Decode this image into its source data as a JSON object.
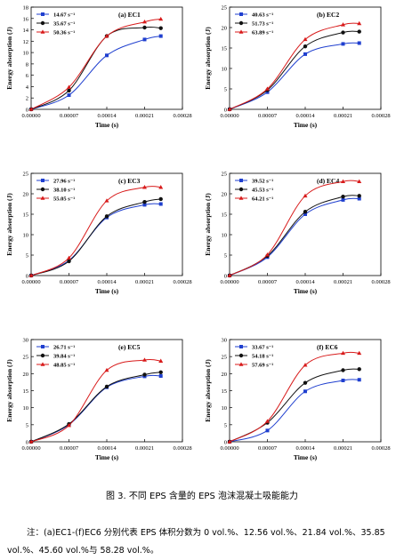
{
  "caption": "图 3. 不同 EPS 含量的 EPS 泡沫混凝土吸能能力",
  "note": "注：(a)EC1-(f)EC6 分别代表 EPS 体积分数为 0 vol.%、12.56 vol.%、21.84 vol.%、35.85 vol.%、45.60 vol.%与 58.28 vol.%。",
  "series_colors": [
    "#1f3fcf",
    "#111111",
    "#d81b1b"
  ],
  "chart_data": [
    {
      "type": "line",
      "panel": "(a) EC1",
      "xlabel": "Time (s)",
      "ylabel": "Energy absorption (J)",
      "xlim": [
        0,
        0.00028
      ],
      "ylim": [
        0,
        18
      ],
      "xticks": [
        "0.00000",
        "0.00007",
        "0.00014",
        "0.00021",
        "0.00028"
      ],
      "yticks": [
        "0",
        "2",
        "4",
        "6",
        "8",
        "10",
        "12",
        "14",
        "16",
        "18"
      ],
      "legend_position": "top-left",
      "series": [
        {
          "name": "14.67 s⁻¹",
          "x": [
            0,
            7e-05,
            0.00014,
            0.00021,
            0.00024
          ],
          "y": [
            0,
            2.5,
            9.5,
            12.3,
            12.9
          ]
        },
        {
          "name": "35.67 s⁻¹",
          "x": [
            0,
            7e-05,
            0.00014,
            0.00021,
            0.00024
          ],
          "y": [
            0,
            3.3,
            12.9,
            14.4,
            14.3
          ]
        },
        {
          "name": "50.36 s⁻¹",
          "x": [
            0,
            7e-05,
            0.00014,
            0.00021,
            0.00024
          ],
          "y": [
            0,
            3.9,
            12.9,
            15.4,
            15.9
          ]
        }
      ]
    },
    {
      "type": "line",
      "panel": "(b) EC2",
      "xlabel": "Time (s)",
      "ylabel": "Energy absorption (J)",
      "xlim": [
        0,
        0.00028
      ],
      "ylim": [
        0,
        25
      ],
      "xticks": [
        "0.00000",
        "0.00007",
        "0.00014",
        "0.00021",
        "0.00028"
      ],
      "yticks": [
        "0",
        "5",
        "10",
        "15",
        "20",
        "25"
      ],
      "legend_position": "top-left",
      "series": [
        {
          "name": "40.63 s⁻¹",
          "x": [
            0,
            7e-05,
            0.00014,
            0.00021,
            0.00024
          ],
          "y": [
            0,
            4.2,
            13.5,
            16.0,
            16.2
          ]
        },
        {
          "name": "51.73 s⁻¹",
          "x": [
            0,
            7e-05,
            0.00014,
            0.00021,
            0.00024
          ],
          "y": [
            0,
            4.7,
            15.4,
            18.8,
            19.0
          ]
        },
        {
          "name": "63.89 s⁻¹",
          "x": [
            0,
            7e-05,
            0.00014,
            0.00021,
            0.00024
          ],
          "y": [
            0,
            5.0,
            17.1,
            20.7,
            21.0
          ]
        }
      ]
    },
    {
      "type": "line",
      "panel": "(c) EC3",
      "xlabel": "Time (s)",
      "ylabel": "Energy absorption (J)",
      "xlim": [
        0,
        0.00028
      ],
      "ylim": [
        0,
        25
      ],
      "xticks": [
        "0.00000",
        "0.00007",
        "0.00014",
        "0.00021",
        "0.00028"
      ],
      "yticks": [
        "0",
        "5",
        "10",
        "15",
        "20",
        "25"
      ],
      "legend_position": "top-left",
      "series": [
        {
          "name": "27.96 s⁻¹",
          "x": [
            0,
            7e-05,
            0.00014,
            0.00021,
            0.00024
          ],
          "y": [
            0,
            3.7,
            14.2,
            17.3,
            17.5
          ]
        },
        {
          "name": "38.10 s⁻¹",
          "x": [
            0,
            7e-05,
            0.00014,
            0.00021,
            0.00024
          ],
          "y": [
            0,
            3.5,
            14.5,
            18.0,
            18.7
          ]
        },
        {
          "name": "55.05 s⁻¹",
          "x": [
            0,
            7e-05,
            0.00014,
            0.00021,
            0.00024
          ],
          "y": [
            0,
            4.3,
            18.3,
            21.6,
            21.6
          ]
        }
      ]
    },
    {
      "type": "line",
      "panel": "(d) EC4",
      "xlabel": "Time (s)",
      "ylabel": "Energy absorption (J)",
      "xlim": [
        0,
        0.00028
      ],
      "ylim": [
        0,
        25
      ],
      "xticks": [
        "0.00000",
        "0.00007",
        "0.00014",
        "0.00021",
        "0.00028"
      ],
      "yticks": [
        "0",
        "5",
        "10",
        "15",
        "20",
        "25"
      ],
      "legend_position": "top-left",
      "series": [
        {
          "name": "39.52 s⁻¹",
          "x": [
            0,
            7e-05,
            0.00014,
            0.00021,
            0.00024
          ],
          "y": [
            0,
            4.5,
            15.0,
            18.5,
            18.8
          ]
        },
        {
          "name": "45.53 s⁻¹",
          "x": [
            0,
            7e-05,
            0.00014,
            0.00021,
            0.00024
          ],
          "y": [
            0,
            4.8,
            15.6,
            19.3,
            19.5
          ]
        },
        {
          "name": "64.21 s⁻¹",
          "x": [
            0,
            7e-05,
            0.00014,
            0.00021,
            0.00024
          ],
          "y": [
            0,
            5.1,
            19.5,
            23.0,
            23.0
          ]
        }
      ]
    },
    {
      "type": "line",
      "panel": "(e) EC5",
      "xlabel": "Time (s)",
      "ylabel": "Energy absorption (J)",
      "xlim": [
        0,
        0.00028
      ],
      "ylim": [
        0,
        30
      ],
      "xticks": [
        "0.00000",
        "0.00007",
        "0.00014",
        "0.00021",
        "0.00028"
      ],
      "yticks": [
        "0",
        "5",
        "10",
        "15",
        "20",
        "25",
        "30"
      ],
      "legend_position": "top-left",
      "series": [
        {
          "name": "26.71 s⁻¹",
          "x": [
            0,
            7e-05,
            0.00014,
            0.00021,
            0.00024
          ],
          "y": [
            0,
            5.0,
            16.0,
            19.2,
            19.3
          ]
        },
        {
          "name": "39.84 s⁻¹",
          "x": [
            0,
            7e-05,
            0.00014,
            0.00021,
            0.00024
          ],
          "y": [
            0,
            5.2,
            16.2,
            19.7,
            20.4
          ]
        },
        {
          "name": "48.85 s⁻¹",
          "x": [
            0,
            7e-05,
            0.00014,
            0.00021,
            0.00024
          ],
          "y": [
            0,
            4.8,
            21.0,
            24.0,
            23.7
          ]
        }
      ]
    },
    {
      "type": "line",
      "panel": "(f) EC6",
      "xlabel": "Time (s)",
      "ylabel": "Energy absorption (J)",
      "xlim": [
        0,
        0.00028
      ],
      "ylim": [
        0,
        30
      ],
      "xticks": [
        "0.00000",
        "0.00007",
        "0.00014",
        "0.00021",
        "0.00028"
      ],
      "yticks": [
        "0",
        "5",
        "10",
        "15",
        "20",
        "25",
        "30"
      ],
      "legend_position": "top-left",
      "series": [
        {
          "name": "33.67 s⁻¹",
          "x": [
            0,
            7e-05,
            0.00014,
            0.00021,
            0.00024
          ],
          "y": [
            0,
            3.3,
            14.8,
            18.0,
            18.2
          ]
        },
        {
          "name": "54.18 s⁻¹",
          "x": [
            0,
            7e-05,
            0.00014,
            0.00021,
            0.00024
          ],
          "y": [
            0,
            5.6,
            17.3,
            21.0,
            21.3
          ]
        },
        {
          "name": "57.69 s⁻¹",
          "x": [
            0,
            7e-05,
            0.00014,
            0.00021,
            0.00024
          ],
          "y": [
            0,
            6.0,
            22.5,
            26.0,
            26.0
          ]
        }
      ]
    }
  ]
}
